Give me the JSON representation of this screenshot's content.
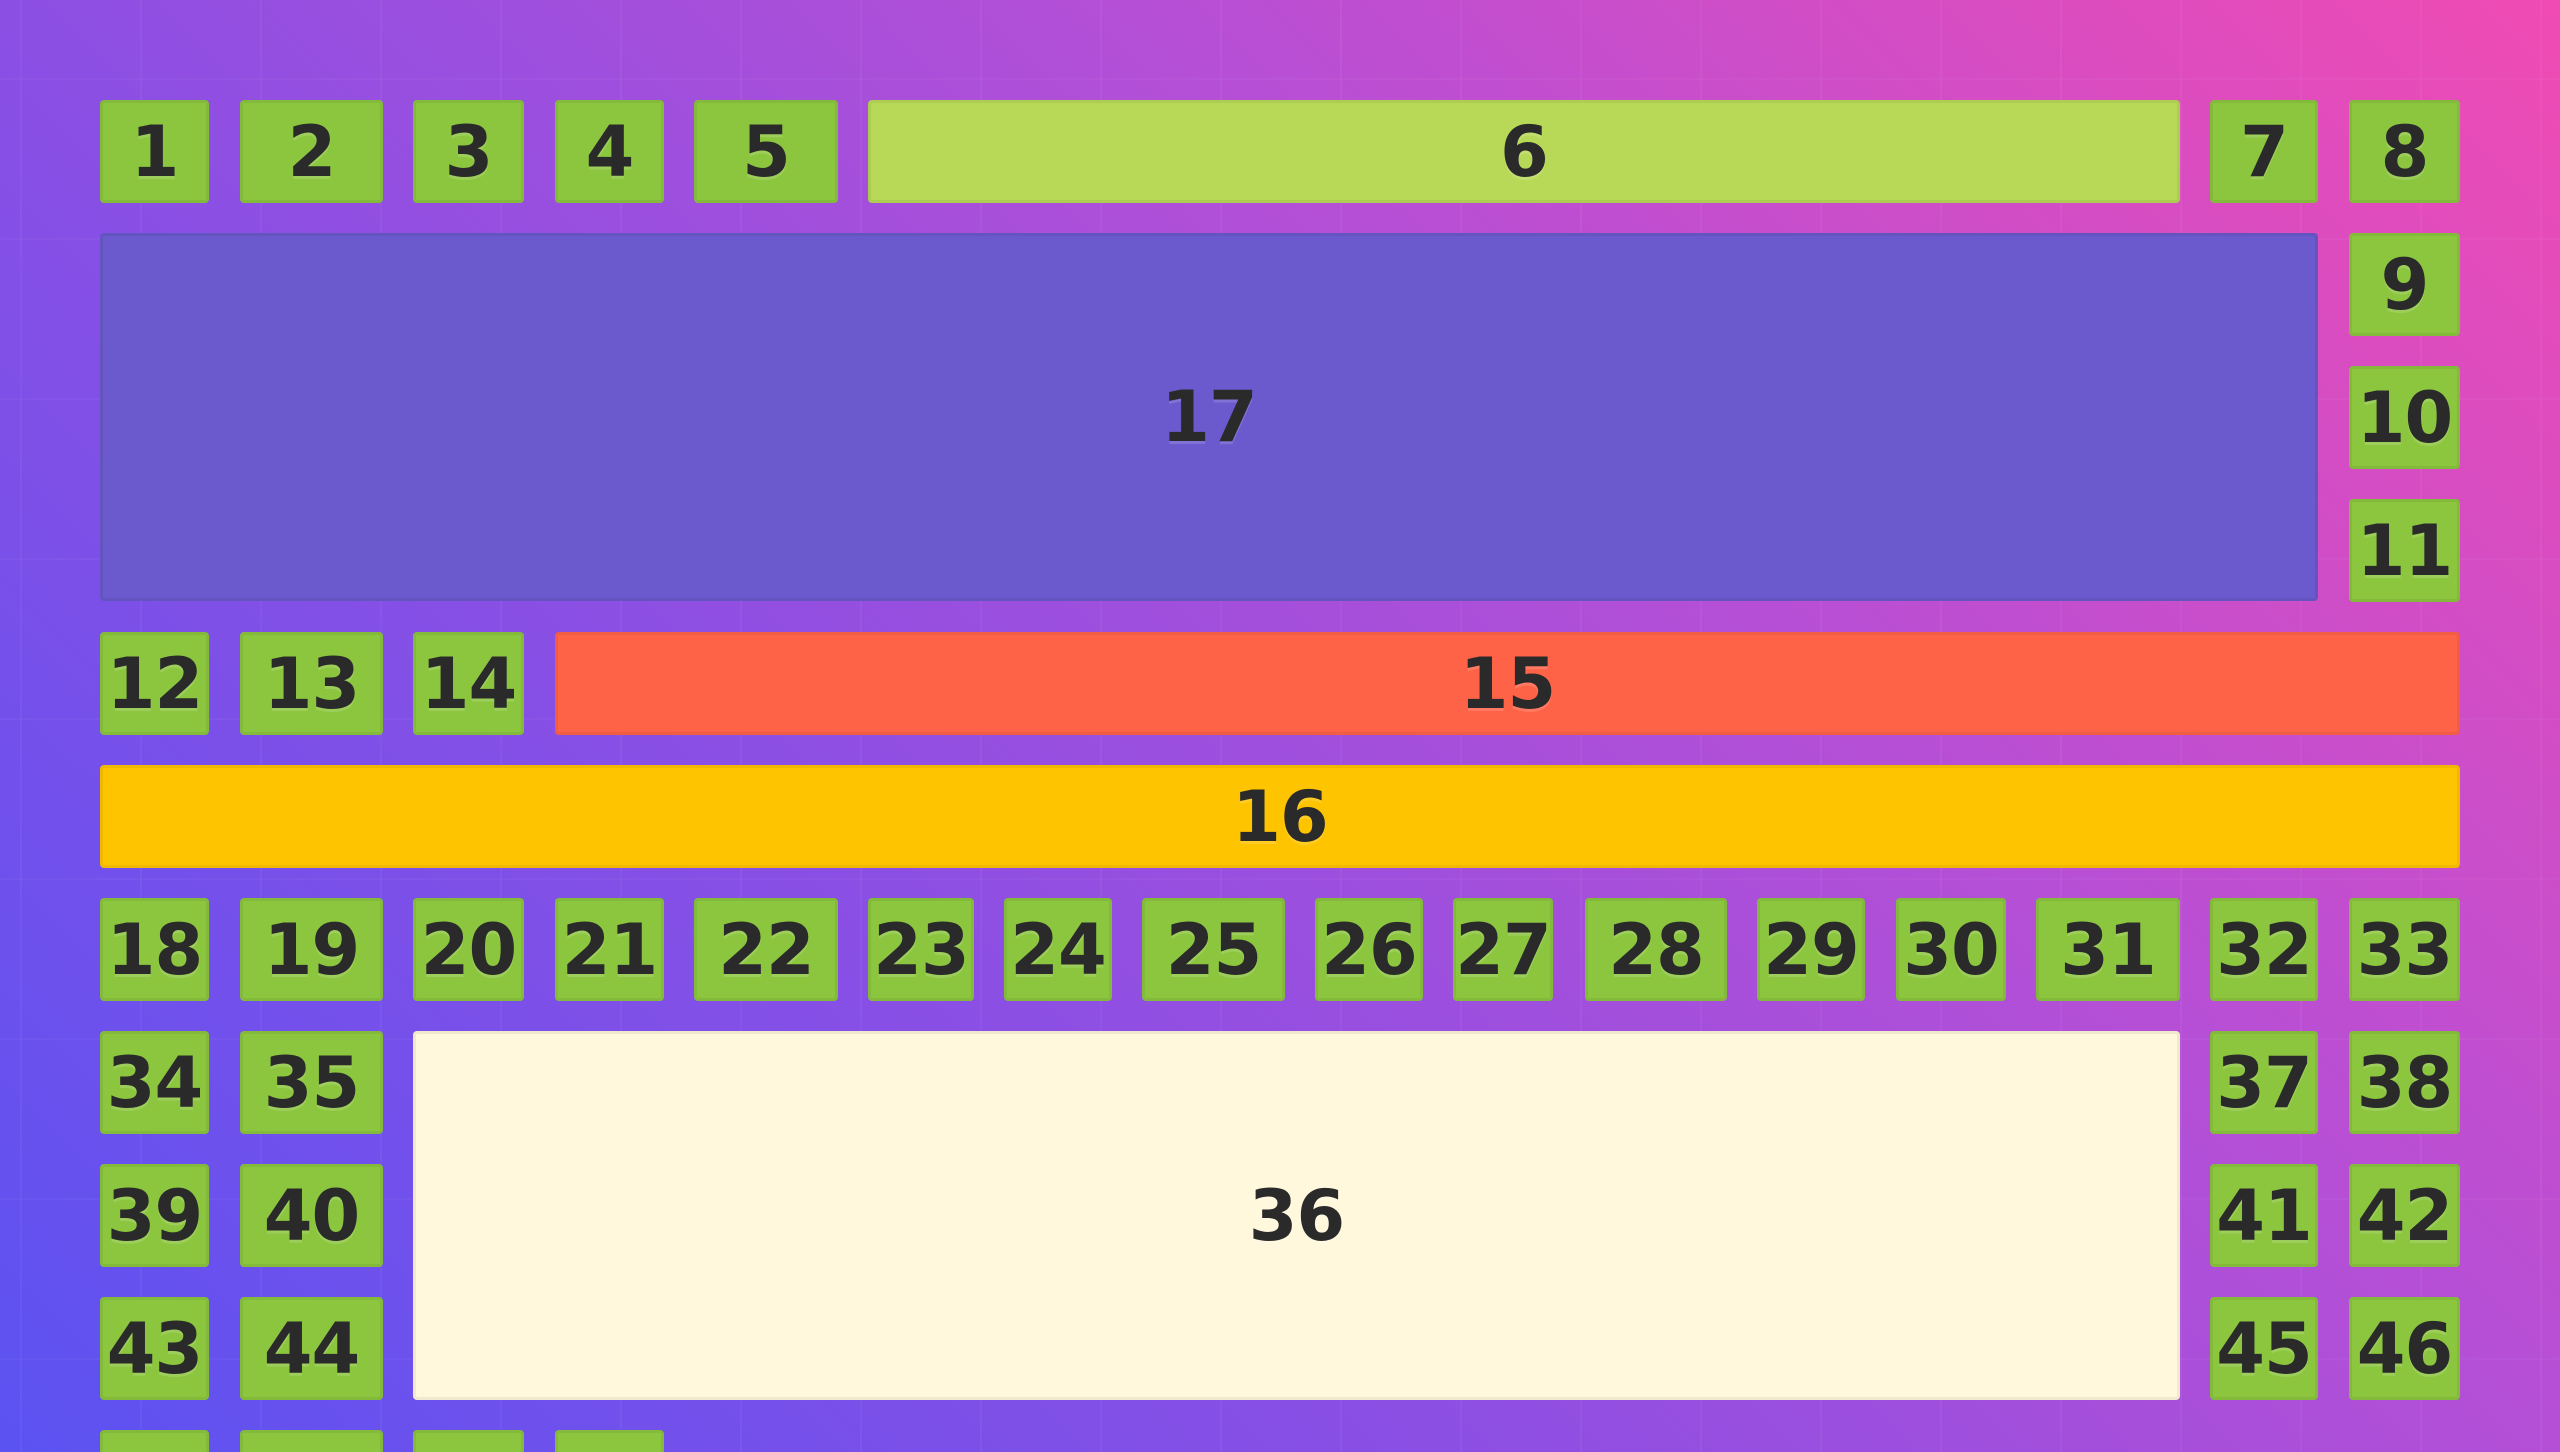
{
  "colors": {
    "tile_green": "#8cc63f",
    "tile_light_green": "#b8d958",
    "tile_purple": "#6a5acd",
    "tile_red": "#ff6347",
    "tile_yellow": "#ffc400",
    "tile_cream": "#fff8dc",
    "text": "#2a2a2a"
  },
  "tiles": {
    "t1": "1",
    "t2": "2",
    "t3": "3",
    "t4": "4",
    "t5": "5",
    "t6": "6",
    "t7": "7",
    "t8": "8",
    "t9": "9",
    "t10": "10",
    "t11": "11",
    "t12": "12",
    "t13": "13",
    "t14": "14",
    "t15": "15",
    "t16": "16",
    "t17": "17",
    "t18": "18",
    "t19": "19",
    "t20": "20",
    "t21": "21",
    "t22": "22",
    "t23": "23",
    "t24": "24",
    "t25": "25",
    "t26": "26",
    "t27": "27",
    "t28": "28",
    "t29": "29",
    "t30": "30",
    "t31": "31",
    "t32": "32",
    "t33": "33",
    "t34": "34",
    "t35": "35",
    "t36": "36",
    "t37": "37",
    "t38": "38",
    "t39": "39",
    "t40": "40",
    "t41": "41",
    "t42": "42",
    "t43": "43",
    "t44": "44",
    "t45": "45",
    "t46": "46"
  }
}
